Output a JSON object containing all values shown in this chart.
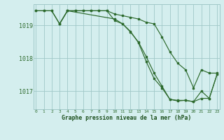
{
  "background_color": "#d4eeee",
  "grid_color": "#a0c8c8",
  "line_color": "#2d6a2d",
  "marker_color": "#2d6a2d",
  "xlabel": "Graphe pression niveau de la mer (hPa)",
  "xlabel_color": "#1a4d1a",
  "ylabel_ticks": [
    1017,
    1018,
    1019
  ],
  "xlim": [
    -0.3,
    23.3
  ],
  "ylim": [
    1016.45,
    1019.65
  ],
  "line1_x": [
    0,
    1,
    2,
    3,
    4,
    5,
    6,
    7,
    8,
    9,
    10,
    11,
    12,
    13,
    14,
    15,
    16,
    17,
    18,
    19,
    20,
    21,
    22,
    23
  ],
  "line1_y": [
    1019.45,
    1019.45,
    1019.45,
    1019.05,
    1019.45,
    1019.45,
    1019.45,
    1019.45,
    1019.45,
    1019.45,
    1019.35,
    1019.3,
    1019.25,
    1019.2,
    1019.1,
    1019.05,
    1018.65,
    1018.2,
    1017.85,
    1017.65,
    1017.1,
    1017.65,
    1017.55,
    1017.55
  ],
  "line2_x": [
    0,
    1,
    2,
    3,
    4,
    5,
    6,
    7,
    8,
    9,
    10,
    11,
    12,
    13,
    14,
    15,
    16,
    17,
    18,
    19,
    20,
    21,
    22,
    23
  ],
  "line2_y": [
    1019.45,
    1019.45,
    1019.45,
    1019.05,
    1019.45,
    1019.45,
    1019.45,
    1019.45,
    1019.45,
    1019.45,
    1019.15,
    1019.05,
    1018.8,
    1018.5,
    1018.05,
    1017.55,
    1017.15,
    1016.75,
    1016.7,
    1016.72,
    1016.68,
    1017.0,
    1016.78,
    1017.52
  ],
  "line3_x": [
    3,
    4,
    10,
    11,
    12,
    13,
    14,
    15,
    16,
    17,
    18,
    19,
    20,
    21,
    22,
    23
  ],
  "line3_y": [
    1019.05,
    1019.45,
    1019.2,
    1019.05,
    1018.82,
    1018.48,
    1017.9,
    1017.38,
    1017.1,
    1016.75,
    1016.72,
    1016.72,
    1016.68,
    1016.78,
    1016.78,
    1017.52
  ],
  "xtick_labels": [
    "0",
    "1",
    "2",
    "3",
    "4",
    "5",
    "6",
    "7",
    "8",
    "9",
    "10",
    "11",
    "12",
    "13",
    "14",
    "15",
    "16",
    "17",
    "18",
    "19",
    "20",
    "21",
    "22",
    "23"
  ]
}
